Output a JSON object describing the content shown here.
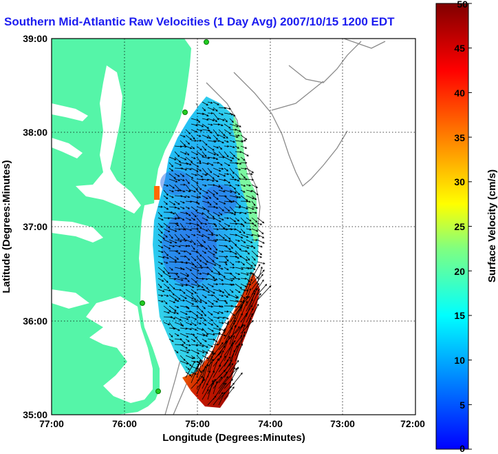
{
  "title": "Southern Mid-Atlantic Raw Velocities (1 Day Avg) 2007/10/15 1200 EDT",
  "map": {
    "x_label": "Longitude (Degrees:Minutes)",
    "y_label": "Latitude (Degrees:Minutes)",
    "x_ticks": [
      "77:00",
      "76:00",
      "75:00",
      "74:00",
      "73:00",
      "72:00"
    ],
    "y_ticks": [
      "39:00",
      "38:00",
      "37:00",
      "36:00",
      "35:00"
    ],
    "lon_range": [
      -77,
      -72
    ],
    "lat_range": [
      35,
      39
    ],
    "colors": {
      "land": "#55f5a8",
      "ocean": "#ffffff",
      "isobath": "#8a8a8a",
      "grid": "#000000",
      "station": "#22cc22"
    }
  },
  "colorbar": {
    "label": "Surface Velocity (cm/s)",
    "ticks": [
      "50",
      "45",
      "40",
      "35",
      "30",
      "25",
      "20",
      "15",
      "10",
      "5",
      "0"
    ],
    "min": 0,
    "max": 50,
    "colormap": "jet"
  }
}
